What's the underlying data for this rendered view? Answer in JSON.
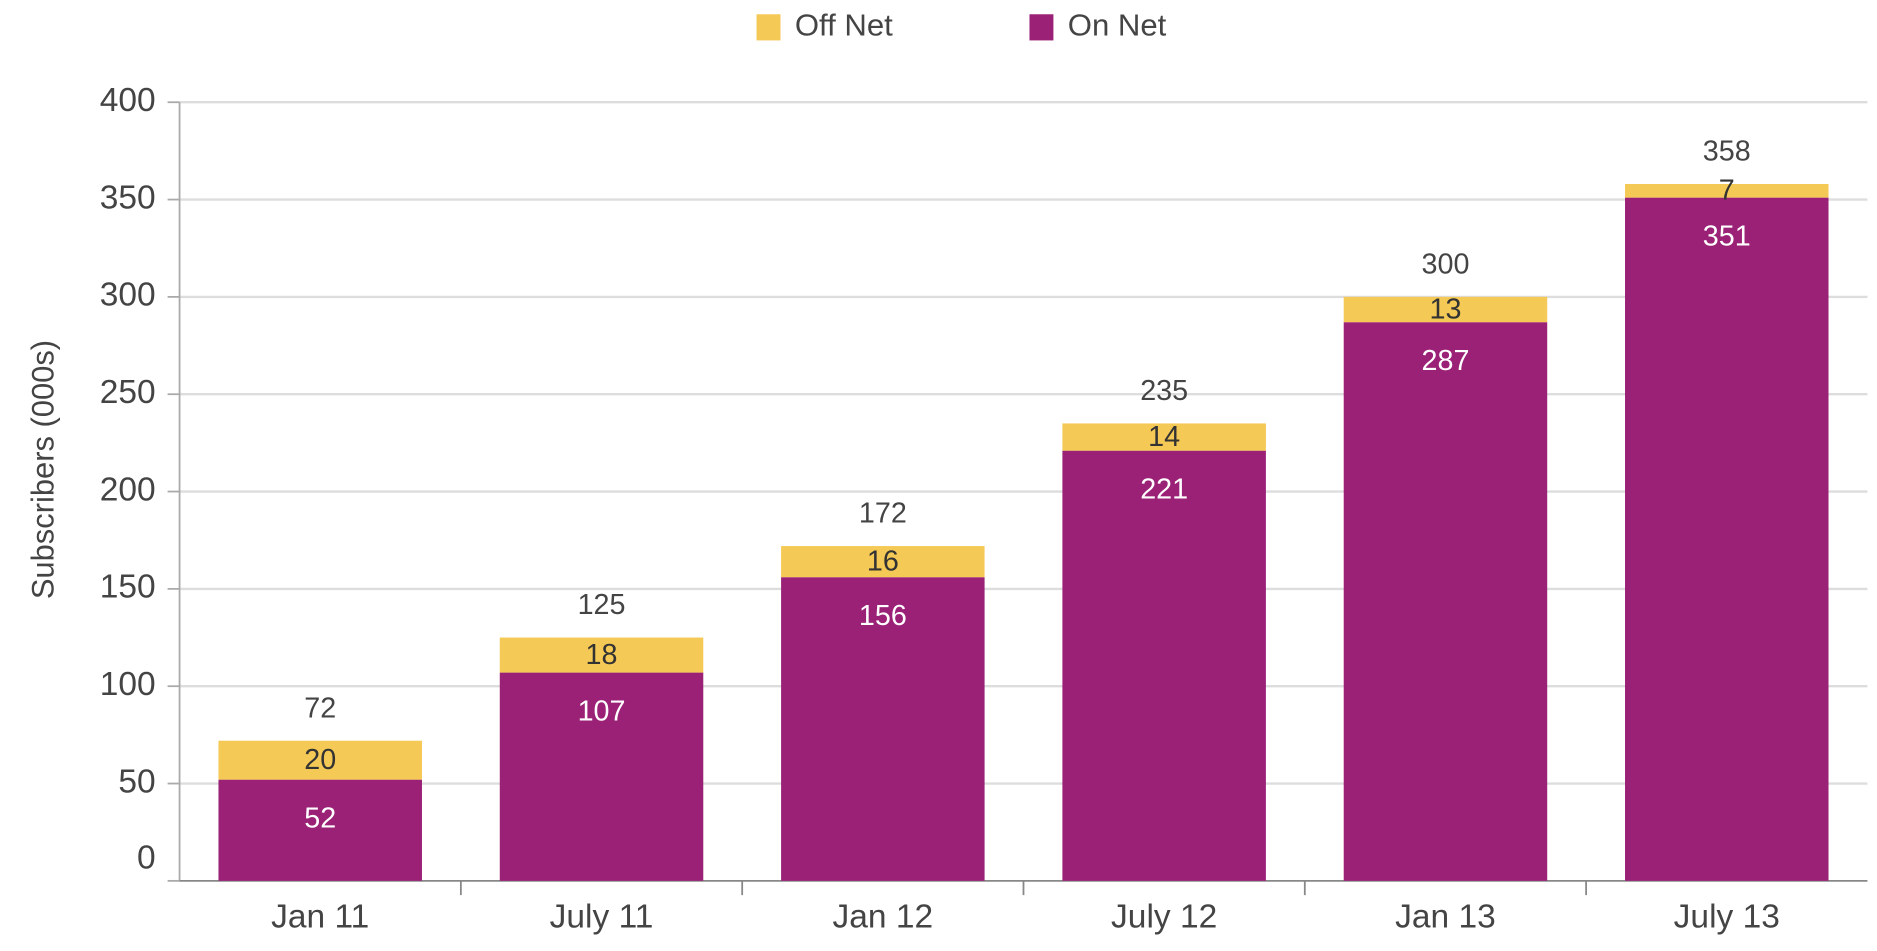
{
  "chart_data": {
    "type": "stacked_bar",
    "y_label": "Subscribers (000s)",
    "categories": [
      "Jan 11",
      "July 11",
      "Jan 12",
      "July 12",
      "Jan 13",
      "July 13"
    ],
    "series": [
      {
        "name": "Off Net",
        "color": "#f5c956",
        "values": [
          20,
          18,
          16,
          14,
          13,
          7
        ]
      },
      {
        "name": "On Net",
        "color": "#9b2177",
        "values": [
          52,
          107,
          156,
          221,
          287,
          351
        ]
      }
    ],
    "totals": [
      72,
      125,
      172,
      235,
      300,
      358
    ],
    "ylim": [
      0,
      400
    ],
    "yticks": [
      0,
      50,
      100,
      150,
      200,
      250,
      300,
      350,
      400
    ],
    "grid": true,
    "legend": "top"
  }
}
